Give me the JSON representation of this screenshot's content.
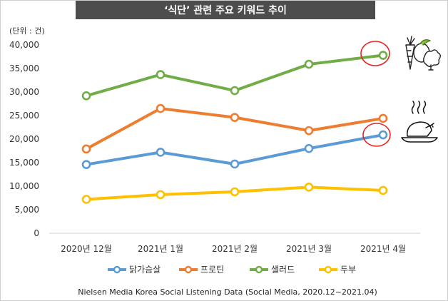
{
  "header": {
    "title": "‘식단’ 관련 주요 키워드 추이"
  },
  "chart_data": {
    "type": "line",
    "title": "‘식단’ 관련 주요 키워드 추이",
    "unit_label": "(단위 : 건)",
    "categories": [
      "2020년 12월",
      "2021년 1월",
      "2021년 2월",
      "2021년 3월",
      "2021년 4월"
    ],
    "yticks": [
      "0",
      "5,000",
      "10,000",
      "15,000",
      "20,000",
      "25,000",
      "30,000",
      "35,000",
      "40,000"
    ],
    "ylim": [
      0,
      40000
    ],
    "grid": false,
    "legend_position": "bottom",
    "series": [
      {
        "name": "닭가슴살",
        "color": "#5b9bd5",
        "values": [
          14600,
          17200,
          14700,
          18000,
          20900
        ]
      },
      {
        "name": "프로틴",
        "color": "#ed7d31",
        "values": [
          17900,
          26500,
          24600,
          21800,
          24400
        ]
      },
      {
        "name": "샐러드",
        "color": "#70ad47",
        "values": [
          29200,
          33700,
          30300,
          35900,
          37800
        ]
      },
      {
        "name": "두부",
        "color": "#ffc000",
        "values": [
          7200,
          8200,
          8800,
          9800,
          9100
        ]
      }
    ],
    "source": "Nielsen Media Korea Social Listening Data (Social Media, 2020.12~2021.04)"
  },
  "icons": {
    "top": "vegetables-icon",
    "bottom": "roast-chicken-icon",
    "highlight_color": "#e8231f"
  }
}
